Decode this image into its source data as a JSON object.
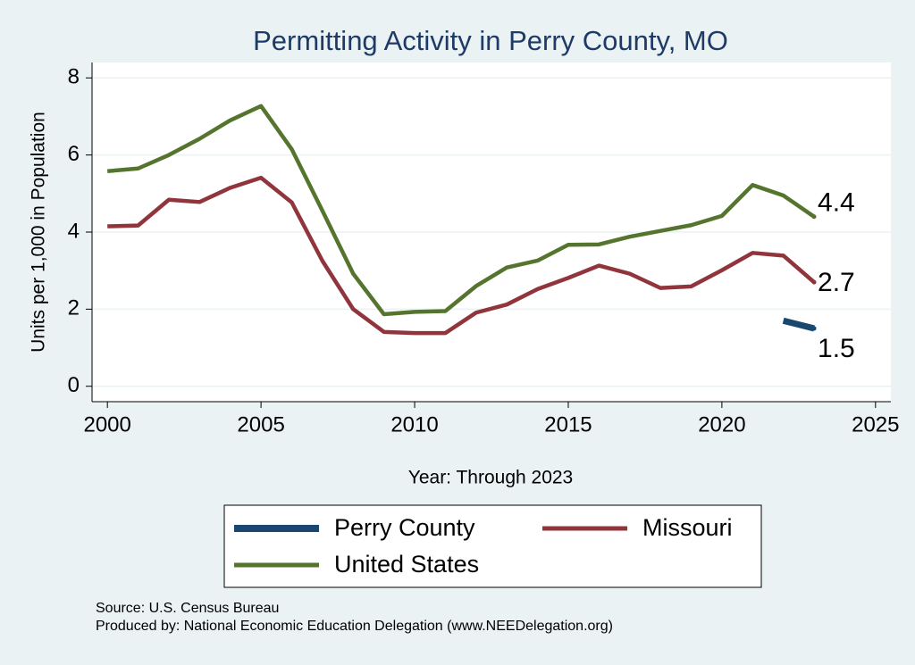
{
  "chart_data": {
    "type": "line",
    "title": "Permitting Activity in Perry County, MO",
    "x_label": "Year: Through 2023",
    "y_label": "Units per 1,000 in Population",
    "x": [
      2000,
      2001,
      2002,
      2003,
      2004,
      2005,
      2006,
      2007,
      2008,
      2009,
      2010,
      2011,
      2012,
      2013,
      2014,
      2015,
      2016,
      2017,
      2018,
      2019,
      2020,
      2021,
      2022,
      2023
    ],
    "series": [
      {
        "name": "Perry County",
        "color": "#1a476f",
        "values": [
          null,
          null,
          null,
          null,
          null,
          null,
          null,
          null,
          null,
          null,
          null,
          null,
          null,
          null,
          null,
          null,
          null,
          null,
          null,
          null,
          null,
          null,
          1.7,
          1.5
        ]
      },
      {
        "name": "Missouri",
        "color": "#90353b",
        "values": [
          4.15,
          4.17,
          4.84,
          4.78,
          5.15,
          5.41,
          4.77,
          3.25,
          2.0,
          1.41,
          1.38,
          1.38,
          1.91,
          2.12,
          2.52,
          2.81,
          3.13,
          2.92,
          2.55,
          2.59,
          3.01,
          3.46,
          3.39,
          2.7
        ]
      },
      {
        "name": "United States",
        "color": "#55752f",
        "values": [
          5.58,
          5.65,
          6.0,
          6.42,
          6.9,
          7.27,
          6.15,
          4.55,
          2.92,
          1.87,
          1.93,
          1.95,
          2.6,
          3.08,
          3.26,
          3.67,
          3.68,
          3.88,
          4.03,
          4.18,
          4.42,
          5.22,
          4.95,
          4.4
        ]
      }
    ],
    "xlim": [
      1999.5,
      2025.5
    ],
    "xticks": [
      2000,
      2005,
      2010,
      2015,
      2020,
      2025
    ],
    "ylim": [
      -0.4,
      8.4
    ],
    "yticks": [
      0,
      2,
      4,
      6,
      8
    ],
    "grid": true,
    "notes": [
      "Source: U.S. Census Bureau",
      "Produced by: National Economic Education Delegation (www.NEEDelegation.org)"
    ]
  }
}
